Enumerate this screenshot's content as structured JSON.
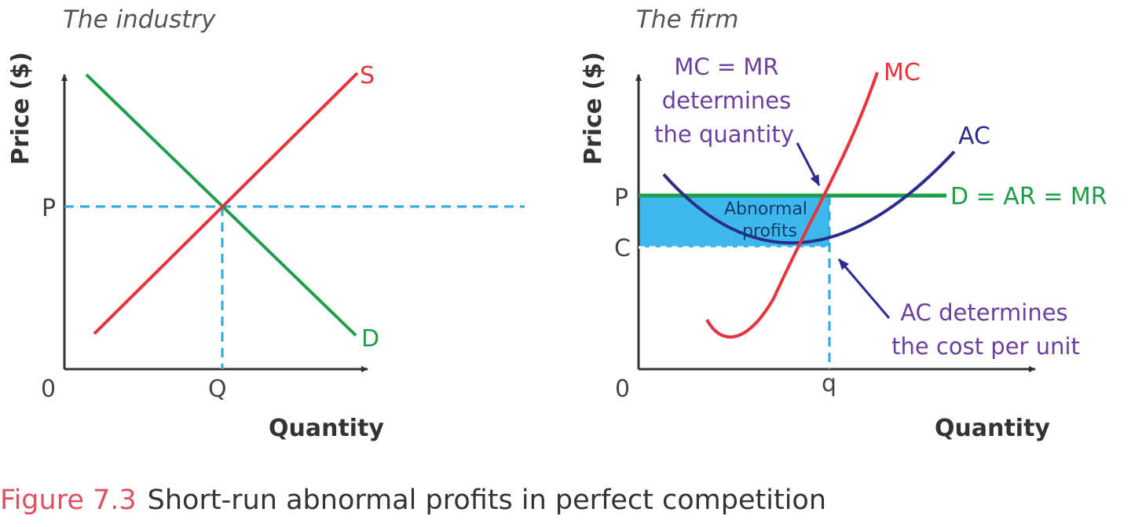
{
  "colors": {
    "axis": "#333333",
    "supply": "#e8323c",
    "demand": "#1f9e4a",
    "dash": "#29a8e0",
    "ac": "#2b2c8c",
    "annotation": "#6a3fa0",
    "shade": "#3db8ec",
    "caption_number": "#e05060"
  },
  "industry": {
    "title": "The industry",
    "ylabel": "Price ($)",
    "xlabel": "Quantity",
    "origin": "0",
    "p_label": "P",
    "q_label": "Q",
    "s_label": "S",
    "d_label": "D"
  },
  "firm": {
    "title": "The firm",
    "ylabel": "Price ($)",
    "xlabel": "Quantity",
    "origin": "0",
    "p_label": "P",
    "c_label": "C",
    "q_label": "q",
    "mc_label": "MC",
    "ac_label": "AC",
    "d_label": "D = AR = MR",
    "profit_label": [
      "Abnormal",
      "profits"
    ],
    "note_top": [
      "MC = MR",
      "determines",
      "the quantity"
    ],
    "note_bottom": [
      "AC determines",
      "the cost per unit"
    ]
  },
  "caption": {
    "number": "Figure 7.3",
    "text": "Short-run abnormal profits in perfect competition"
  }
}
